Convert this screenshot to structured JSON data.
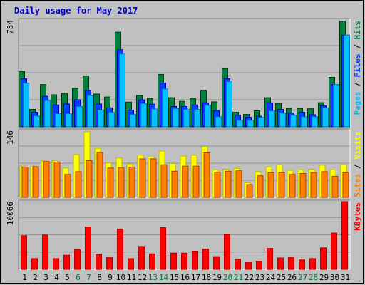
{
  "chart_data": {
    "type": "bar",
    "title": "Daily usage for May 2017",
    "categories": [
      "1",
      "2",
      "3",
      "4",
      "5",
      "6",
      "7",
      "8",
      "9",
      "10",
      "11",
      "12",
      "13",
      "14",
      "15",
      "16",
      "17",
      "18",
      "19",
      "20",
      "21",
      "22",
      "23",
      "24",
      "25",
      "26",
      "27",
      "28",
      "29",
      "30",
      "31"
    ],
    "weekend_days": [
      "6",
      "7",
      "13",
      "14",
      "20",
      "21",
      "27",
      "28"
    ],
    "panels": [
      {
        "id": "hits-files-pages",
        "max_label": "734",
        "ymax": 734,
        "side_label_parts": [
          {
            "text": "Pages",
            "color": "#00c0ff"
          },
          {
            "text": " / ",
            "color": "#000000"
          },
          {
            "text": "Files",
            "color": "#0040ff"
          },
          {
            "text": " / ",
            "color": "#000000"
          },
          {
            "text": "Hits",
            "color": "#008040"
          }
        ],
        "series": [
          {
            "name": "Hits",
            "color": "#008040",
            "values": [
              380,
              120,
              290,
              220,
              230,
              265,
              350,
              225,
              205,
              650,
              170,
              215,
              195,
              360,
              200,
              175,
              195,
              250,
              172,
              400,
              100,
              85,
              110,
              200,
              160,
              126,
              126,
              124,
              166,
              340,
              724
            ]
          },
          {
            "name": "Files",
            "color": "#0040ff",
            "values": [
              330,
              100,
              210,
              150,
              157,
              186,
              250,
              157,
              130,
              530,
              115,
              185,
              155,
              300,
              140,
              140,
              150,
              165,
              112,
              330,
              80,
              65,
              73,
              165,
              120,
              94,
              100,
              83,
              144,
              290,
              630
            ]
          },
          {
            "name": "Pages",
            "color": "#00c0ff",
            "values": [
              300,
              75,
              180,
              90,
              90,
              140,
              215,
              115,
              100,
              500,
              83,
              160,
              122,
              260,
              125,
              120,
              120,
              148,
              70,
              310,
              45,
              45,
              65,
              110,
              95,
              80,
              70,
              70,
              130,
              290,
              630
            ]
          }
        ]
      },
      {
        "id": "visits-sites",
        "max_label": "146",
        "ymax": 146,
        "side_label_parts": [
          {
            "text": "Sites",
            "color": "#ff8000"
          },
          {
            "text": " / ",
            "color": "#000000"
          },
          {
            "text": "Visits",
            "color": "#ffff00"
          }
        ],
        "series": [
          {
            "name": "Visits",
            "color": "#ffff00",
            "values": [
              68,
              68,
              79,
              80,
              64,
              93,
              143,
              107,
              75,
              86,
              73,
              92,
              88,
              101,
              74,
              90,
              92,
              111,
              60,
              61,
              63,
              32,
              56,
              66,
              71,
              59,
              60,
              61,
              70,
              60,
              71
            ]
          },
          {
            "name": "Sites",
            "color": "#ff8000",
            "values": [
              66,
              67,
              78,
              77,
              50,
              56,
              80,
              98,
              64,
              65,
              66,
              84,
              84,
              71,
              57,
              68,
              68,
              97,
              55,
              57,
              58,
              28,
              47,
              54,
              54,
              50,
              52,
              54,
              56,
              46,
              54
            ]
          }
        ]
      },
      {
        "id": "kbytes",
        "max_label": "10066",
        "ymax": 10066,
        "side_label_parts": [
          {
            "text": "KBytes",
            "color": "#ff0000"
          }
        ],
        "series": [
          {
            "name": "KBytes",
            "color": "#ff0000",
            "values": [
              5000,
              1600,
              5100,
              1600,
              2100,
              2900,
              6300,
              2200,
              1800,
              6000,
              1600,
              3400,
              2300,
              6200,
              2400,
              2400,
              2700,
              3000,
              1900,
              5200,
              1500,
              1000,
              1200,
              3100,
              1700,
              1800,
              1400,
              1600,
              3200,
              5400,
              10066
            ]
          }
        ]
      }
    ]
  }
}
